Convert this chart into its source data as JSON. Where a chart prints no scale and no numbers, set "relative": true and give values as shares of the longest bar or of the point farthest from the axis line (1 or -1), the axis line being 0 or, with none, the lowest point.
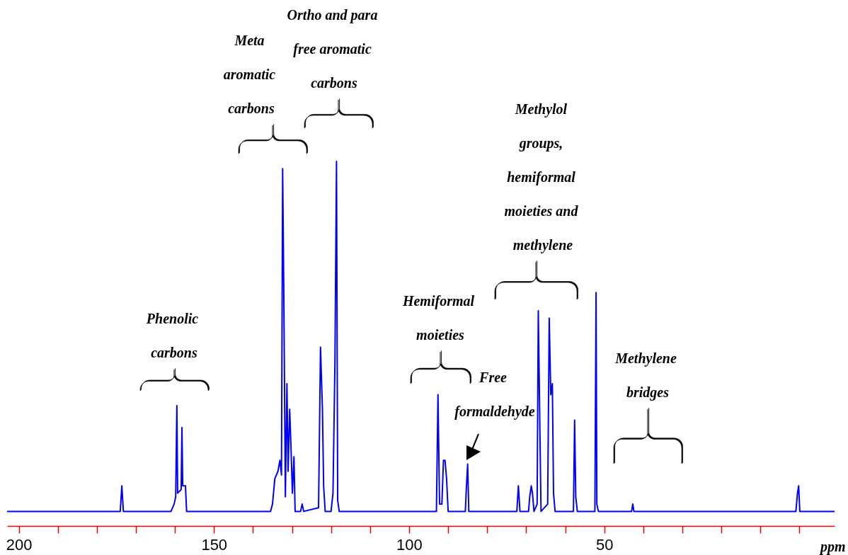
{
  "chart_data": {
    "type": "line",
    "relative": true,
    "xlabel": "ppm",
    "xlim": [
      203,
      -9
    ],
    "xticks": [
      200,
      {
        "value": 190,
        "label": null
      },
      {
        "value": 180,
        "label": null
      },
      {
        "value": 170,
        "label": null
      },
      {
        "value": 160,
        "label": null
      },
      150,
      {
        "value": 140,
        "label": null
      },
      {
        "value": 130,
        "label": null
      },
      {
        "value": 120,
        "label": null
      },
      {
        "value": 110,
        "label": null
      },
      100,
      {
        "value": 90,
        "label": null
      },
      {
        "value": 80,
        "label": null
      },
      {
        "value": 70,
        "label": null
      },
      {
        "value": 60,
        "label": null
      },
      50,
      {
        "value": 40,
        "label": null
      },
      {
        "value": 30,
        "label": null
      },
      {
        "value": 20,
        "label": null
      },
      {
        "value": 10,
        "label": null
      },
      {
        "value": 0,
        "label": null
      }
    ],
    "grid": false,
    "marker": "none",
    "line_style": "solid",
    "series": [
      {
        "color": "#0000ff",
        "x": [
          203,
          174.0,
          173.6,
          173.2,
          161,
          160.2,
          159.8,
          159.5,
          159.3,
          158.4,
          158.2,
          158.0,
          157.3,
          157.0,
          135.5,
          135,
          134.4,
          133.6,
          133.1,
          132.7,
          132.4,
          132.1,
          131.7,
          131.3,
          131.0,
          130.6,
          130.3,
          129.9,
          129.5,
          129.2,
          127.8,
          127.4,
          127.0,
          123.2,
          122.7,
          122.2,
          121.9,
          121.5,
          120.0,
          119.5,
          119.0,
          118.6,
          118.3,
          117.9,
          93.0,
          92.6,
          92.2,
          91.6,
          91.2,
          90.8,
          90.4,
          90.0,
          85.6,
          85.3,
          85.0,
          84.7,
          72.4,
          72.0,
          71.6,
          69.4,
          69.1,
          68.7,
          68.4,
          68.0,
          67.2,
          66.9,
          66.6,
          66.2,
          64.5,
          64.1,
          63.7,
          63.3,
          63.0,
          62.6,
          57.9,
          57.6,
          57.3,
          56.9,
          52.4,
          52.1,
          51.9,
          51.5,
          43.0,
          42.7,
          42.4,
          0.9,
          0.5,
          0.2,
          -0.1,
          -9
        ],
        "values": [
          0.04,
          0.04,
          0.11,
          0.04,
          0.04,
          0.06,
          0.08,
          0.33,
          0.09,
          0.1,
          0.27,
          0.11,
          0.11,
          0.04,
          0.04,
          0.06,
          0.13,
          0.15,
          0.18,
          0.14,
          0.98,
          0.64,
          0.08,
          0.39,
          0.15,
          0.32,
          0.23,
          0.09,
          0.19,
          0.04,
          0.04,
          0.06,
          0.04,
          0.05,
          0.49,
          0.32,
          0.11,
          0.04,
          0.04,
          0.09,
          0.45,
          1,
          0.07,
          0.04,
          0.04,
          0.36,
          0.06,
          0.06,
          0.18,
          0.18,
          0.13,
          0.04,
          0.04,
          0.11,
          0.17,
          0.04,
          0.04,
          0.11,
          0.04,
          0.04,
          0.08,
          0.11,
          0.09,
          0.04,
          0.06,
          0.59,
          0.35,
          0.04,
          0.06,
          0.57,
          0.36,
          0.39,
          0.09,
          0.04,
          0.04,
          0.29,
          0.08,
          0.04,
          0.04,
          0.64,
          0.06,
          0.04,
          0.04,
          0.06,
          0.04,
          0.04,
          0.09,
          0.11,
          0.04,
          0.04
        ]
      }
    ],
    "annotations": [
      "Phenolic carbons",
      "Meta aromatic carbons",
      "Ortho and para free aromatic carbons",
      "Hemiformal moieties",
      "Free formaldehyde",
      "Methylol groups, hemiformal moieties and methylene",
      "Methylene bridges"
    ]
  }
}
